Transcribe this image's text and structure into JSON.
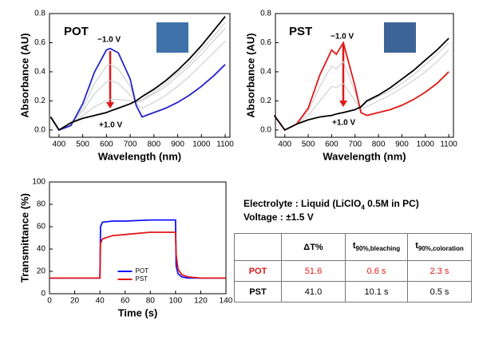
{
  "chart_data": [
    {
      "type": "line",
      "annotations": [
        "POT",
        "−1.0 V",
        "+1.0 V"
      ],
      "x_label": "Wavelength (nm)",
      "y_label": "Absorbance (AU)",
      "x": [
        365,
        400,
        450,
        500,
        550,
        600,
        615,
        650,
        700,
        725,
        750,
        800,
        850,
        900,
        950,
        1000,
        1050,
        1100
      ],
      "series": [
        {
          "color": "#c8c8c8",
          "values": [
            0.09,
            0.0,
            0.04,
            0.1,
            0.16,
            0.2,
            0.21,
            0.21,
            0.2,
            0.19,
            0.21,
            0.26,
            0.32,
            0.39,
            0.46,
            0.55,
            0.64,
            0.74
          ]
        },
        {
          "color": "#c8c8c8",
          "values": [
            0.09,
            0.0,
            0.04,
            0.13,
            0.25,
            0.33,
            0.34,
            0.32,
            0.24,
            0.19,
            0.2,
            0.25,
            0.3,
            0.37,
            0.44,
            0.52,
            0.61,
            0.7
          ]
        },
        {
          "color": "#c8c8c8",
          "values": [
            0.09,
            0.0,
            0.04,
            0.15,
            0.32,
            0.44,
            0.45,
            0.42,
            0.3,
            0.18,
            0.15,
            0.19,
            0.24,
            0.3,
            0.37,
            0.45,
            0.53,
            0.61
          ]
        },
        {
          "color": "#2424c8",
          "values": [
            0.09,
            0.0,
            0.03,
            0.18,
            0.4,
            0.55,
            0.56,
            0.53,
            0.35,
            0.17,
            0.09,
            0.12,
            0.15,
            0.19,
            0.24,
            0.3,
            0.37,
            0.45
          ]
        },
        {
          "color": "#000000",
          "values": [
            0.09,
            0.0,
            0.05,
            0.08,
            0.1,
            0.12,
            0.13,
            0.15,
            0.18,
            0.2,
            0.23,
            0.28,
            0.34,
            0.41,
            0.49,
            0.58,
            0.68,
            0.78
          ]
        }
      ],
      "xlim": [
        360,
        1120
      ],
      "xticks": [
        400,
        500,
        600,
        700,
        800,
        900,
        1000,
        1100
      ],
      "ylim": [
        -0.05,
        0.8
      ],
      "yticks": [
        {
          "value": 0,
          "label": "0.0"
        },
        0.2,
        0.4,
        0.6,
        0.8
      ]
    },
    {
      "type": "line",
      "annotations": [
        "PST",
        "−1.0 V",
        "+1.0 V"
      ],
      "x_label": "Wavelength (nm)",
      "y_label": "Absorbance (AU)",
      "x": [
        355,
        400,
        450,
        500,
        550,
        600,
        620,
        650,
        700,
        725,
        750,
        800,
        850,
        900,
        950,
        1000,
        1050,
        1100
      ],
      "series": [
        {
          "color": "#c8c8c8",
          "values": [
            0.1,
            0.0,
            0.04,
            0.1,
            0.2,
            0.3,
            0.29,
            0.32,
            0.2,
            0.15,
            0.19,
            0.23,
            0.27,
            0.32,
            0.38,
            0.45,
            0.52,
            0.6
          ]
        },
        {
          "color": "#c8c8c8",
          "values": [
            0.1,
            0.0,
            0.04,
            0.13,
            0.3,
            0.44,
            0.42,
            0.47,
            0.26,
            0.14,
            0.16,
            0.2,
            0.24,
            0.29,
            0.34,
            0.4,
            0.47,
            0.55
          ]
        },
        {
          "color": "#e01818",
          "values": [
            0.1,
            0.0,
            0.04,
            0.15,
            0.38,
            0.55,
            0.52,
            0.6,
            0.3,
            0.12,
            0.1,
            0.12,
            0.14,
            0.17,
            0.21,
            0.26,
            0.32,
            0.4
          ]
        },
        {
          "color": "#000000",
          "values": [
            0.1,
            0.0,
            0.04,
            0.07,
            0.09,
            0.1,
            0.11,
            0.12,
            0.14,
            0.16,
            0.2,
            0.24,
            0.29,
            0.35,
            0.41,
            0.48,
            0.55,
            0.63
          ]
        }
      ],
      "xlim": [
        360,
        1120
      ],
      "xticks": [
        400,
        500,
        600,
        700,
        800,
        900,
        1000,
        1100
      ],
      "ylim": [
        -0.05,
        0.8
      ],
      "yticks": [
        {
          "value": 0,
          "label": "0.0"
        },
        0.2,
        0.4,
        0.6,
        0.8
      ]
    },
    {
      "type": "line",
      "x_label": "Time (s)",
      "y_label": "Transmittance (%)",
      "legend": "lower center",
      "x": [
        0,
        40,
        40.5,
        42,
        50,
        60,
        80,
        100,
        100.5,
        102,
        105,
        110,
        120,
        140
      ],
      "series": [
        {
          "name": "POT",
          "color": "#1010ff",
          "values": [
            14,
            14,
            60,
            64,
            65,
            65,
            66,
            66,
            25,
            18,
            15,
            14,
            14,
            14
          ]
        },
        {
          "name": "PST",
          "color": "#e01818",
          "values": [
            14,
            14,
            45,
            49,
            52,
            53,
            55,
            55,
            35,
            22,
            17,
            15,
            14,
            14
          ]
        }
      ],
      "xlim": [
        0,
        140
      ],
      "xticks": [
        0,
        20,
        40,
        60,
        80,
        100,
        120,
        140
      ],
      "ylim": [
        0,
        100
      ],
      "yticks": [
        0,
        20,
        40,
        60,
        80,
        100
      ]
    }
  ],
  "info": {
    "electrolyte": {
      "prefix": "Electrolyte : Liquid (LiClO",
      "sub": "4",
      "suffix": " 0.5M in PC)"
    },
    "voltage": "Voltage : ±1.5 V"
  },
  "table": {
    "headers": [
      "ΔT%",
      {
        "main": "t",
        "sub": "90%,bleaching"
      },
      {
        "main": "t",
        "sub": "90%,coloration"
      }
    ],
    "rows": [
      {
        "color": "#e01818",
        "cells": [
          "POT",
          "51.6",
          "0.6 s",
          "2.3 s"
        ]
      },
      {
        "color": "#000000",
        "cells": [
          "PST",
          "41.0",
          "10.1 s",
          "0.5 s"
        ]
      }
    ]
  }
}
